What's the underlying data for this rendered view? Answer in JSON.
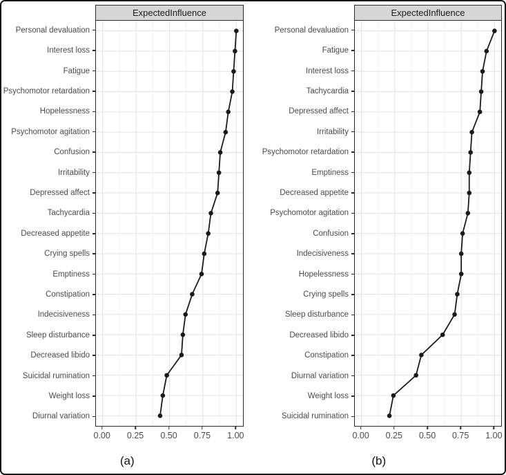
{
  "figure": {
    "captions": [
      "(a)",
      "(b)"
    ]
  },
  "colors": {
    "point": "#1a1a1a",
    "line": "#1a1a1a",
    "strip_bg": "#d6d6d6",
    "grid_major": "#e3e3e3",
    "grid_minor": "#f2f2f2",
    "panel_border": "#2b2b2b",
    "label_text": "#4a4a4a",
    "frame_border": "#181818"
  },
  "chart_data": [
    {
      "type": "scatter",
      "connected": true,
      "title": "ExpectedInfluence",
      "xlabel": "",
      "ylabel": "",
      "xlim": [
        0,
        1
      ],
      "x_ticks": [
        0,
        0.25,
        0.5,
        0.75,
        1
      ],
      "x_tick_labels": [
        "0.00",
        "0.25",
        "0.50",
        "0.75",
        "1.00"
      ],
      "grid": "vertical major+minor, horizontal major per category",
      "legend": "none",
      "categories": [
        "Personal devaluation",
        "Interest loss",
        "Fatigue",
        "Psychomotor retardation",
        "Hopelessness",
        "Psychomotor agitation",
        "Confusion",
        "Irritability",
        "Depressed affect",
        "Tachycardia",
        "Decreased appetite",
        "Crying spells",
        "Emptiness",
        "Constipation",
        "Indecisiveness",
        "Sleep disturbance",
        "Decreased libido",
        "Suicidal rumination",
        "Weight loss",
        "Diurnal variation"
      ],
      "values": [
        1.0,
        0.99,
        0.98,
        0.97,
        0.94,
        0.92,
        0.88,
        0.87,
        0.86,
        0.81,
        0.79,
        0.76,
        0.74,
        0.67,
        0.62,
        0.6,
        0.59,
        0.48,
        0.45,
        0.43
      ]
    },
    {
      "type": "scatter",
      "connected": true,
      "title": "ExpectedInfluence",
      "xlabel": "",
      "ylabel": "",
      "xlim": [
        0,
        1
      ],
      "x_ticks": [
        0,
        0.25,
        0.5,
        0.75,
        1
      ],
      "x_tick_labels": [
        "0.00",
        "0.25",
        "0.50",
        "0.75",
        "1.00"
      ],
      "grid": "vertical major+minor, horizontal major per category",
      "legend": "none",
      "categories": [
        "Personal devaluation",
        "Fatigue",
        "Interest loss",
        "Tachycardia",
        "Depressed affect",
        "Irritability",
        "Psychomotor retardation",
        "Emptiness",
        "Decreased appetite",
        "Psychomotor agitation",
        "Confusion",
        "Indecisiveness",
        "Hopelessness",
        "Crying spells",
        "Sleep disturbance",
        "Decreased libido",
        "Constipation",
        "Diurnal variation",
        "Weight loss",
        "Suicidal rumination"
      ],
      "values": [
        1.0,
        0.94,
        0.91,
        0.9,
        0.89,
        0.83,
        0.82,
        0.81,
        0.81,
        0.8,
        0.76,
        0.75,
        0.75,
        0.72,
        0.7,
        0.61,
        0.45,
        0.41,
        0.24,
        0.21
      ]
    }
  ]
}
